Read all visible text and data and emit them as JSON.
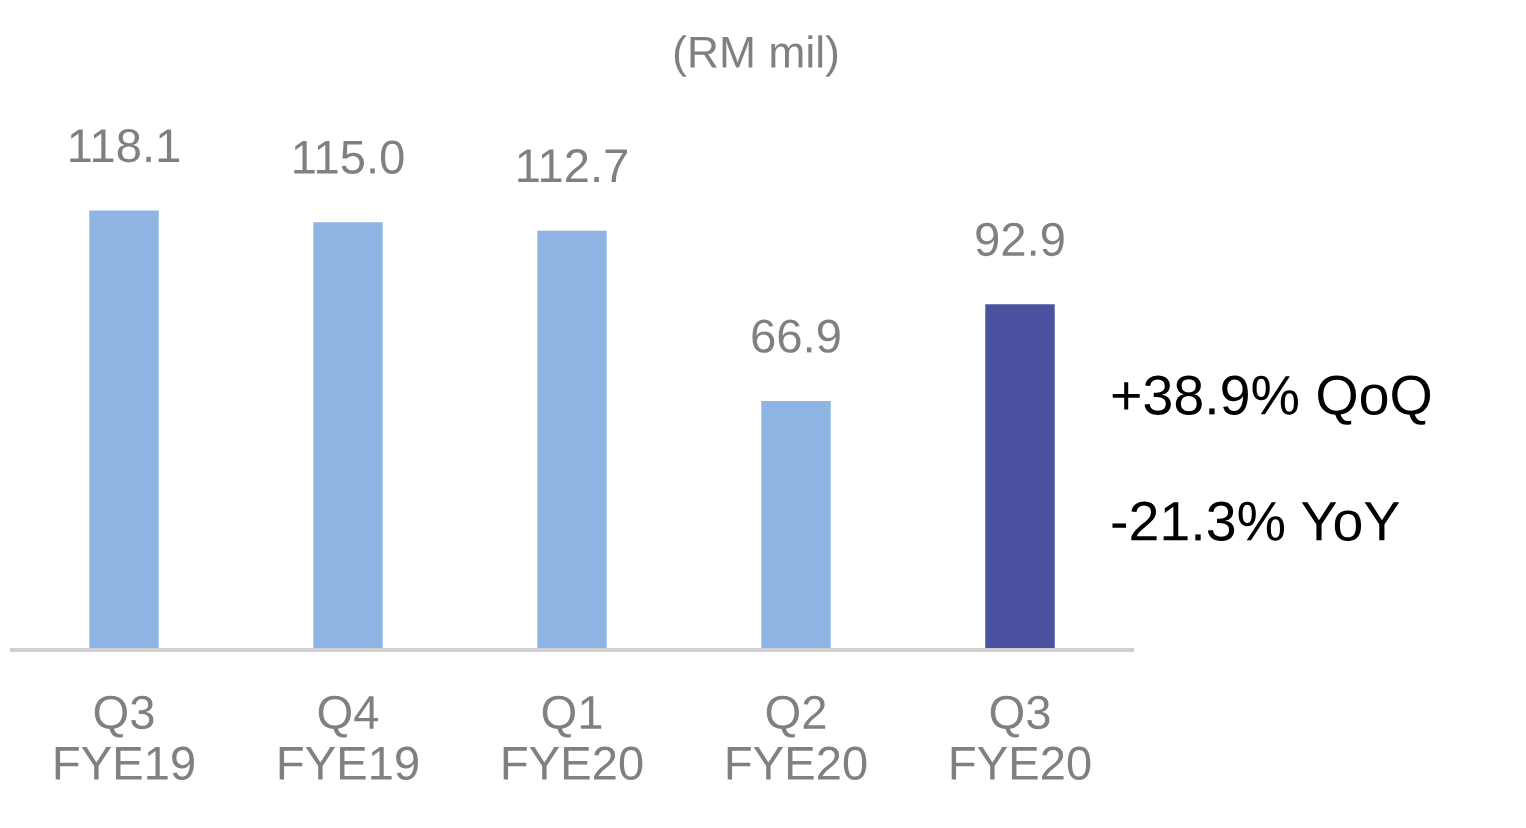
{
  "chart_data": {
    "type": "bar",
    "title": "(RM mil)",
    "categories": [
      "Q3\nFYE19",
      "Q4\nFYE19",
      "Q1\nFYE20",
      "Q2\nFYE20",
      "Q3\nFYE20"
    ],
    "values": [
      118.1,
      115.0,
      112.7,
      66.9,
      92.9
    ],
    "value_labels": [
      "118.1",
      "115.0",
      "112.7",
      "66.9",
      "92.9"
    ],
    "colors": [
      "#8db4e2",
      "#8db4e2",
      "#8db4e2",
      "#8db4e2",
      "#4a52a0"
    ],
    "data_labels": true,
    "grid": false,
    "legend": false,
    "annotations": [
      "+38.9% QoQ",
      "-21.3% YoY"
    ]
  }
}
